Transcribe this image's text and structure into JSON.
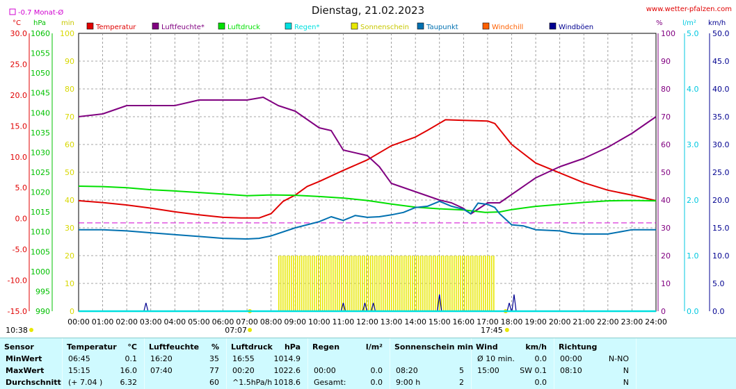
{
  "header": {
    "title": "Dienstag, 21.02.2023",
    "site": "www.wetter-pfalzen.com",
    "monat_label": "-0.7 Monat-Ø"
  },
  "units": {
    "temp": "°C",
    "hpa": "hPa",
    "min": "min",
    "pct": "%",
    "rain": "l/m²",
    "wind": "km/h"
  },
  "legend": [
    {
      "name": "Temperatur",
      "color": "#e00000"
    },
    {
      "name": "Luftfeuchte*",
      "color": "#800080"
    },
    {
      "name": "Luftdruck",
      "color": "#00e000"
    },
    {
      "name": "Regen*",
      "color": "#00e0e0"
    },
    {
      "name": "Sonnenschein",
      "color": "#e8e800"
    },
    {
      "name": "Taupunkt",
      "color": "#0070b0"
    },
    {
      "name": "Windchill",
      "color": "#ff6000"
    },
    {
      "name": "Windböen",
      "color": "#000090"
    }
  ],
  "chart_data": {
    "type": "line",
    "title": "Dienstag, 21.02.2023",
    "x": [
      "00:00",
      "01:00",
      "02:00",
      "03:00",
      "04:00",
      "05:00",
      "06:00",
      "07:00",
      "08:00",
      "09:00",
      "10:00",
      "11:00",
      "12:00",
      "13:00",
      "14:00",
      "15:00",
      "16:00",
      "17:00",
      "18:00",
      "19:00",
      "20:00",
      "21:00",
      "22:00",
      "23:00",
      "24:00"
    ],
    "axes": {
      "temp": {
        "range": [
          -15,
          30
        ],
        "ticks": [
          "30.0",
          "25.0",
          "20.0",
          "15.0",
          "10.0",
          "5.0",
          "0.0",
          "-5.0",
          "-10.0",
          "-15.0"
        ]
      },
      "pressure": {
        "range": [
          990,
          1060
        ],
        "ticks": [
          "1060",
          "1055",
          "1050",
          "1045",
          "1040",
          "1035",
          "1030",
          "1025",
          "1020",
          "1015",
          "1010",
          "1005",
          "1000",
          "995",
          "990"
        ]
      },
      "minutes": {
        "range": [
          0,
          100
        ],
        "ticks": [
          "100",
          "90",
          "80",
          "70",
          "60",
          "50",
          "40",
          "30",
          "20",
          "10",
          "0"
        ]
      },
      "humidity": {
        "range": [
          0,
          100
        ],
        "ticks": [
          "100",
          "90",
          "80",
          "70",
          "60",
          "50",
          "40",
          "30",
          "20",
          "10",
          "0"
        ]
      },
      "rain": {
        "range": [
          0,
          5
        ],
        "ticks": [
          "5.0",
          "4.0",
          "3.0",
          "2.0",
          "1.0",
          "0.0"
        ]
      },
      "wind": {
        "range": [
          0,
          50
        ],
        "ticks": [
          "50.0",
          "45.0",
          "40.0",
          "35.0",
          "30.0",
          "25.0",
          "20.0",
          "15.0",
          "10.0",
          "5.0",
          "0.0"
        ]
      }
    },
    "month_avg_temp": -0.7,
    "sunrise": "07:07",
    "sunset": "17:45",
    "series": [
      {
        "name": "Temperatur",
        "axis": "temp",
        "points": [
          [
            0,
            2.9
          ],
          [
            1,
            2.6
          ],
          [
            2,
            2.2
          ],
          [
            3,
            1.7
          ],
          [
            4,
            1.1
          ],
          [
            5,
            0.6
          ],
          [
            6,
            0.2
          ],
          [
            6.75,
            0.1
          ],
          [
            7.5,
            0.1
          ],
          [
            8,
            0.8
          ],
          [
            8.5,
            2.8
          ],
          [
            9,
            3.8
          ],
          [
            9.5,
            5.2
          ],
          [
            10,
            6.0
          ],
          [
            11,
            7.8
          ],
          [
            12,
            9.5
          ],
          [
            13,
            11.8
          ],
          [
            14,
            13.2
          ],
          [
            14.5,
            14.3
          ],
          [
            15.25,
            16.0
          ],
          [
            16,
            15.9
          ],
          [
            17,
            15.8
          ],
          [
            17.3,
            15.4
          ],
          [
            18,
            12.0
          ],
          [
            19,
            9.0
          ],
          [
            20,
            7.4
          ],
          [
            21,
            5.8
          ],
          [
            22,
            4.6
          ],
          [
            23,
            3.8
          ],
          [
            24,
            2.9
          ]
        ]
      },
      {
        "name": "Luftfeuchte*",
        "axis": "humidity",
        "points": [
          [
            0,
            70
          ],
          [
            1,
            71
          ],
          [
            2,
            74
          ],
          [
            3,
            74
          ],
          [
            4,
            74
          ],
          [
            5,
            76
          ],
          [
            6,
            76
          ],
          [
            7,
            76
          ],
          [
            7.67,
            77
          ],
          [
            8.3,
            74
          ],
          [
            9,
            72
          ],
          [
            10,
            66
          ],
          [
            10.5,
            65
          ],
          [
            11,
            58
          ],
          [
            12,
            56
          ],
          [
            12.5,
            52
          ],
          [
            13,
            46
          ],
          [
            14,
            43
          ],
          [
            15,
            40
          ],
          [
            15.5,
            39
          ],
          [
            16,
            37
          ],
          [
            16.3,
            35
          ],
          [
            17,
            39
          ],
          [
            17.5,
            39
          ],
          [
            18,
            42
          ],
          [
            19,
            48
          ],
          [
            20,
            52
          ],
          [
            21,
            55
          ],
          [
            22,
            59
          ],
          [
            23,
            64
          ],
          [
            24,
            70
          ]
        ]
      },
      {
        "name": "Luftdruck",
        "axis": "pressure",
        "points": [
          [
            0,
            1021.5
          ],
          [
            1,
            1021.4
          ],
          [
            2,
            1021.1
          ],
          [
            3,
            1020.6
          ],
          [
            4,
            1020.3
          ],
          [
            5,
            1019.9
          ],
          [
            6,
            1019.5
          ],
          [
            7,
            1019.1
          ],
          [
            8,
            1019.3
          ],
          [
            9,
            1019.2
          ],
          [
            10,
            1018.9
          ],
          [
            11,
            1018.5
          ],
          [
            12,
            1017.9
          ],
          [
            13,
            1017.0
          ],
          [
            14,
            1016.2
          ],
          [
            15,
            1015.8
          ],
          [
            16,
            1015.5
          ],
          [
            16.9,
            1014.9
          ],
          [
            17.5,
            1015.0
          ],
          [
            18,
            1015.6
          ],
          [
            19,
            1016.4
          ],
          [
            20,
            1016.9
          ],
          [
            21,
            1017.4
          ],
          [
            22,
            1017.8
          ],
          [
            23,
            1017.9
          ],
          [
            24,
            1017.8
          ]
        ]
      },
      {
        "name": "Taupunkt",
        "axis": "temp",
        "points": [
          [
            0,
            -1.8
          ],
          [
            1,
            -1.8
          ],
          [
            2,
            -2.0
          ],
          [
            3,
            -2.3
          ],
          [
            4,
            -2.6
          ],
          [
            5,
            -2.9
          ],
          [
            6,
            -3.2
          ],
          [
            7,
            -3.3
          ],
          [
            7.5,
            -3.2
          ],
          [
            8,
            -2.8
          ],
          [
            9,
            -1.5
          ],
          [
            10,
            -0.5
          ],
          [
            10.5,
            0.3
          ],
          [
            11,
            -0.3
          ],
          [
            11.5,
            0.5
          ],
          [
            12,
            0.2
          ],
          [
            12.5,
            0.3
          ],
          [
            13,
            0.6
          ],
          [
            13.5,
            1.0
          ],
          [
            14,
            1.8
          ],
          [
            14.5,
            2.0
          ],
          [
            15,
            2.8
          ],
          [
            15.5,
            2.0
          ],
          [
            16,
            1.5
          ],
          [
            16.3,
            0.8
          ],
          [
            16.6,
            2.5
          ],
          [
            17,
            2.3
          ],
          [
            17.3,
            1.8
          ],
          [
            17.5,
            0.8
          ],
          [
            18,
            -1.0
          ],
          [
            18.5,
            -1.2
          ],
          [
            19,
            -1.8
          ],
          [
            20,
            -2.0
          ],
          [
            20.5,
            -2.4
          ],
          [
            21,
            -2.5
          ],
          [
            22,
            -2.5
          ],
          [
            23,
            -1.8
          ],
          [
            24,
            -1.8
          ]
        ]
      },
      {
        "name": "Sonnenschein",
        "axis": "minutes",
        "start": 8.3,
        "end": 17.3,
        "value": 5
      },
      {
        "name": "Windböen",
        "axis": "wind",
        "points": [
          [
            2.8,
            1.5
          ],
          [
            11,
            1.5
          ],
          [
            11.9,
            1.5
          ],
          [
            12.25,
            1.5
          ],
          [
            15,
            3.0
          ],
          [
            17.9,
            1.5
          ],
          [
            18.1,
            3.0
          ]
        ]
      },
      {
        "name": "Regen*",
        "axis": "rain",
        "points": [
          [
            0,
            0
          ],
          [
            24,
            0
          ]
        ]
      }
    ]
  },
  "table": {
    "columns": [
      {
        "title": "Sensor",
        "unit": "",
        "rows": [
          [
            "MinWert",
            ""
          ],
          [
            "MaxWert",
            ""
          ],
          [
            "Durchschnitt",
            ""
          ]
        ]
      },
      {
        "title": "Temperatur",
        "unit": "°C",
        "rows": [
          [
            "06:45",
            "0.1"
          ],
          [
            "15:15",
            "16.0"
          ],
          [
            "(+ 7.04 )",
            "6.32"
          ]
        ]
      },
      {
        "title": "Luftfeuchte",
        "unit": "%",
        "rows": [
          [
            "16:20",
            "35"
          ],
          [
            "07:40",
            "77"
          ],
          [
            "",
            "60"
          ]
        ]
      },
      {
        "title": "Luftdruck",
        "unit": "hPa",
        "rows": [
          [
            "16:55",
            "1014.9"
          ],
          [
            "00:20",
            "1022.6"
          ],
          [
            "^1.5hPa/h",
            "1018.6"
          ]
        ]
      },
      {
        "title": "Regen",
        "unit": "l/m²",
        "rows": [
          [
            "",
            ""
          ],
          [
            "00:00",
            "0.0"
          ],
          [
            "Gesamt:",
            "0.0"
          ]
        ]
      },
      {
        "title": "Sonnenschein min",
        "unit": "",
        "rows": [
          [
            "",
            ""
          ],
          [
            "08:20",
            "5"
          ],
          [
            "9:00 h",
            "2"
          ]
        ]
      },
      {
        "title": "Wind",
        "unit": "km/h",
        "rows": [
          [
            "Ø 10 min.",
            "0.0"
          ],
          [
            "15:00",
            "SW 0.1"
          ],
          [
            "",
            "0.0"
          ]
        ]
      },
      {
        "title": "Richtung",
        "unit": "",
        "rows": [
          [
            "00:00",
            "N-NO"
          ],
          [
            "08:10",
            "N"
          ],
          [
            "",
            "N"
          ]
        ]
      }
    ]
  }
}
